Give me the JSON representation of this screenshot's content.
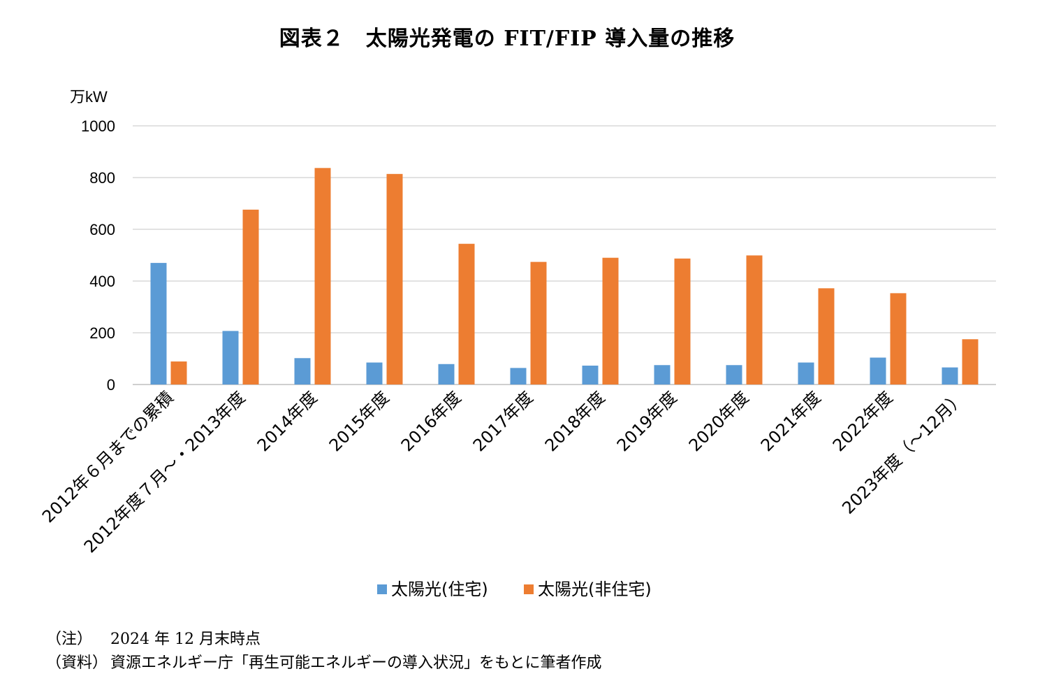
{
  "title": "図表２　太陽光発電の FIT/FIP 導入量の推移",
  "chart_data": {
    "type": "bar",
    "unit_label": "万kW",
    "ylim": [
      0,
      1000
    ],
    "yticks": [
      0,
      200,
      400,
      600,
      800,
      1000
    ],
    "grid": true,
    "legend_position": "bottom",
    "categories": [
      "2012年６月までの累積",
      "2012年度７月～・2013年度",
      "2014年度",
      "2015年度",
      "2016年度",
      "2017年度",
      "2018年度",
      "2019年度",
      "2020年度",
      "2021年度",
      "2022年度",
      "2023年度（～12月）"
    ],
    "series": [
      {
        "name": "太陽光(住宅)",
        "color": "#5b9bd5",
        "values": [
          470,
          207,
          102,
          85,
          79,
          64,
          73,
          75,
          75,
          85,
          104,
          66
        ]
      },
      {
        "name": "太陽光(非住宅)",
        "color": "#ed7d31",
        "values": [
          89,
          676,
          837,
          814,
          544,
          474,
          490,
          487,
          499,
          372,
          353,
          175
        ]
      }
    ]
  },
  "notes": [
    {
      "label": "（注）",
      "text": "2024 年 12 月末時点"
    },
    {
      "label": "（資料）",
      "text": "資源エネルギー庁「再生可能エネルギーの導入状況」をもとに筆者作成"
    }
  ]
}
